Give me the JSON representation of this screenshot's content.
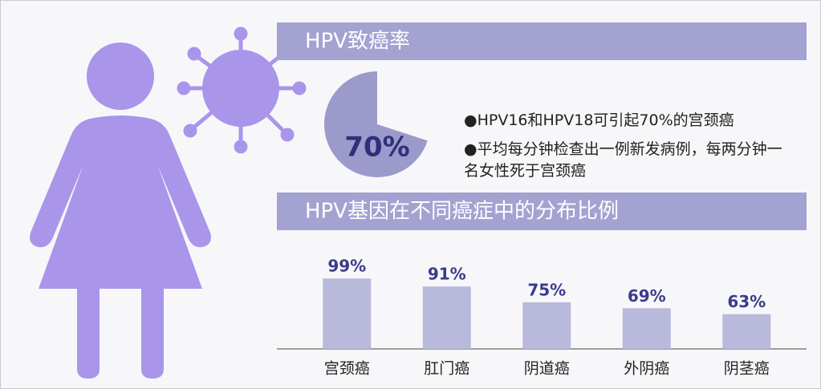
{
  "chart_data": [
    {
      "type": "pie",
      "title": "HPV致癌率",
      "values": [
        70
      ],
      "value_labels": [
        "70%"
      ],
      "color": "#9c9acb",
      "annotations": [
        "●HPV16和HPV18可引起70%的宫颈癌",
        "●平均每分钟检查出一例新发病例，每两分钟一名女性死于宫颈癌"
      ]
    },
    {
      "type": "bar",
      "title": "HPV基因在不同癌症中的分布比例",
      "categories": [
        "宫颈癌",
        "肛门癌",
        "阴道癌",
        "外阴癌",
        "阴茎癌"
      ],
      "values": [
        99,
        91,
        75,
        69,
        63
      ],
      "value_labels": [
        "99%",
        "91%",
        "75%",
        "69%",
        "63%"
      ],
      "color": "#b9b9dc",
      "ylim": [
        28,
        100
      ]
    }
  ]
}
